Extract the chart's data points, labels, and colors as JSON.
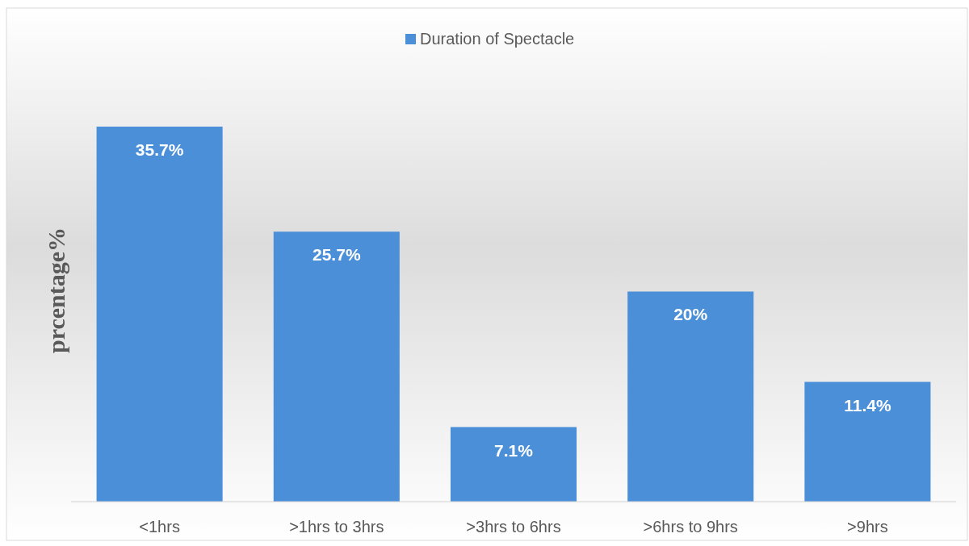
{
  "chart_data": {
    "type": "bar",
    "ylabel": "prcentage%",
    "categories": [
      "<1hrs",
      ">1hrs to 3hrs",
      ">3hrs to 6hrs",
      ">6hrs to 9hrs",
      ">9hrs"
    ],
    "series": [
      {
        "name": "Duration of Spectacle",
        "color": "#4a8fd8",
        "values": [
          35.7,
          25.7,
          7.1,
          20,
          11.4
        ],
        "value_labels": [
          "35.7%",
          "25.7%",
          "7.1%",
          "20%",
          "11.4%"
        ]
      }
    ],
    "relative": false,
    "legend": "top"
  }
}
